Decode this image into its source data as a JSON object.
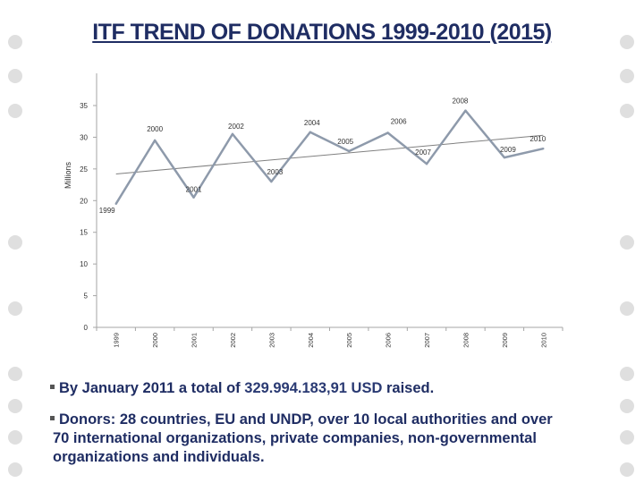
{
  "slide": {
    "title": "ITF TREND OF DONATIONS 1999-2010 (2015)",
    "bullet1_prefix": "By January 2011 a total of ",
    "bullet1_amount": "329.994.183,91 USD",
    "bullet1_suffix": " raised.",
    "bullet2_line1": "Donors: 28 countries, EU and UNDP, over 10 local authorities and over",
    "bullet2_line2": "70  international organizations, private companies, non-governmental",
    "bullet2_line3": "organizations and individuals.",
    "colors": {
      "title": "#1f2d63",
      "series": "#8e9aab",
      "trendline": "#808080",
      "decor_dots": "#dfdfdf"
    }
  },
  "chart_data": {
    "type": "line",
    "categories": [
      "1999",
      "2000",
      "2001",
      "2002",
      "2003",
      "2004",
      "2005",
      "2006",
      "2007",
      "2008",
      "2009",
      "2010"
    ],
    "series": [
      {
        "values": [
          19.5,
          29.5,
          20.5,
          30.5,
          23.0,
          30.8,
          27.8,
          30.7,
          25.8,
          34.2,
          26.8,
          28.2
        ]
      }
    ],
    "point_labels": [
      "1999",
      "2000",
      "2001",
      "2002",
      "2003",
      "2004",
      "2005",
      "2006",
      "2007",
      "2008",
      "2009",
      "2010"
    ],
    "trendline": {
      "type": "linear",
      "start": 24.2,
      "end": 30.3
    },
    "ylabel": "Millions",
    "xlabel": "",
    "ylim": [
      0,
      35
    ],
    "yticks": [
      0,
      5,
      10,
      15,
      20,
      25,
      30,
      35
    ],
    "grid": false,
    "legend": "none"
  }
}
